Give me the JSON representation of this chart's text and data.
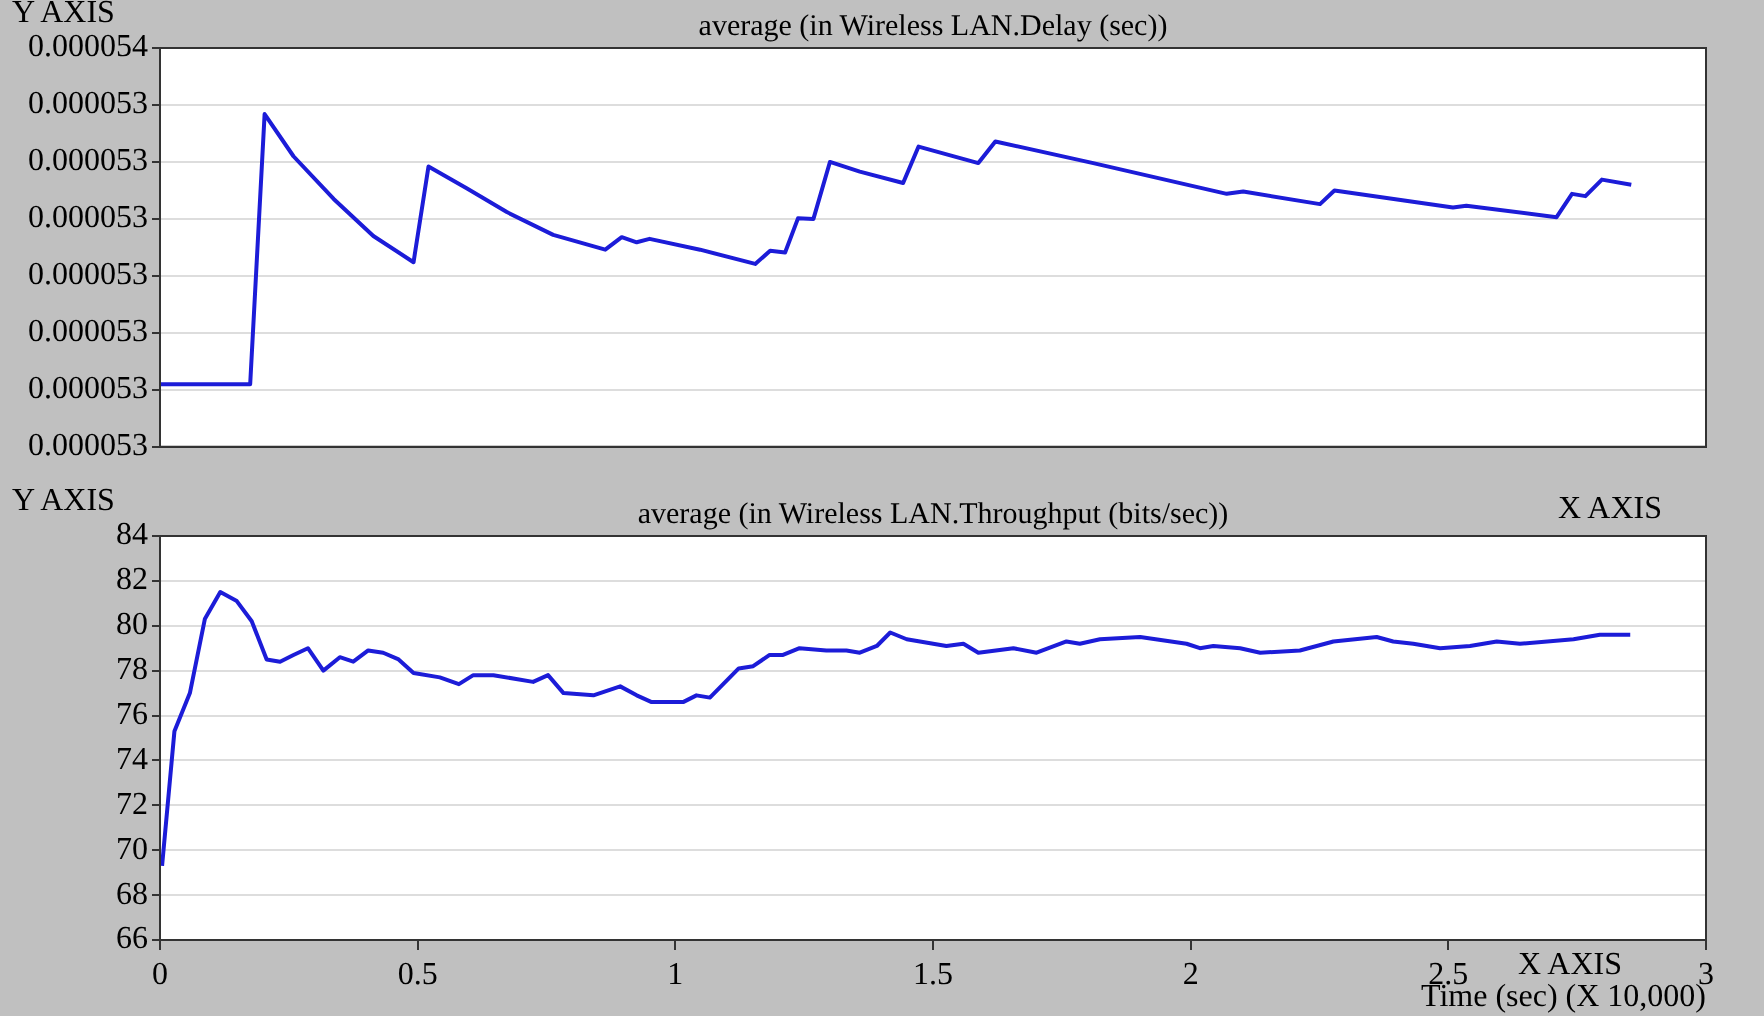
{
  "chart_data": [
    {
      "type": "line",
      "title": "average (in Wireless LAN.Delay (sec))",
      "ylabel": "Y AXIS",
      "xlim": [
        0,
        3
      ],
      "ylim": [
        5.285e-05,
        5.355e-05
      ],
      "tick_labels": "y",
      "grid": "y",
      "marker": "none",
      "yticks": [
        {
          "value": 5.285e-05,
          "label": "0.000053"
        },
        {
          "value": 5.295e-05,
          "label": "0.000053"
        },
        {
          "value": 5.305e-05,
          "label": "0.000053"
        },
        {
          "value": 5.315e-05,
          "label": "0.000053"
        },
        {
          "value": 5.325e-05,
          "label": "0.000053"
        },
        {
          "value": 5.335e-05,
          "label": "0.000053"
        },
        {
          "value": 5.345e-05,
          "label": "0.000053"
        },
        {
          "value": 5.355e-05,
          "label": "0.000054"
        }
      ],
      "x": [
        0,
        0.175,
        0.203,
        0.259,
        0.337,
        0.414,
        0.492,
        0.521,
        0.595,
        0.673,
        0.763,
        0.864,
        0.896,
        0.925,
        0.95,
        1.048,
        1.155,
        1.184,
        1.213,
        1.238,
        1.268,
        1.3,
        1.358,
        1.442,
        1.472,
        1.588,
        1.621,
        1.811,
        2.07,
        2.102,
        2.251,
        2.279,
        2.509,
        2.535,
        2.71,
        2.74,
        2.766,
        2.798,
        2.855
      ],
      "series": [
        {
          "color": "#1c1cd8",
          "values": [
            5.296e-05,
            5.296e-05,
            5.3434e-05,
            5.336e-05,
            5.3285e-05,
            5.322e-05,
            5.3174e-05,
            5.3342e-05,
            5.3304e-05,
            5.3262e-05,
            5.3222e-05,
            5.3196e-05,
            5.3218e-05,
            5.3209e-05,
            5.3215e-05,
            5.3196e-05,
            5.3171e-05,
            5.3194e-05,
            5.3191e-05,
            5.3251e-05,
            5.325e-05,
            5.335e-05,
            5.3333e-05,
            5.3313e-05,
            5.3377e-05,
            5.3348e-05,
            5.3386e-05,
            5.3348e-05,
            5.3294e-05,
            5.3298e-05,
            5.3276e-05,
            5.33e-05,
            5.327e-05,
            5.3273e-05,
            5.3253e-05,
            5.3294e-05,
            5.329e-05,
            5.3319e-05,
            5.331e-05
          ]
        }
      ]
    },
    {
      "type": "line",
      "title": "average (in Wireless LAN.Throughput (bits/sec))",
      "ylabel": "Y AXIS",
      "xlabel": "Time (sec) (X 10,000)",
      "annotations": [
        "X AXIS",
        "X AXIS"
      ],
      "xlim": [
        0,
        3
      ],
      "xticks": [
        0,
        0.5,
        1,
        1.5,
        2,
        2.5,
        3
      ],
      "ylim": [
        66,
        84
      ],
      "yticks": [
        66,
        68,
        70,
        72,
        74,
        76,
        78,
        80,
        82,
        84
      ],
      "grid": "y",
      "marker": "none",
      "x": [
        0.004,
        0.028,
        0.058,
        0.087,
        0.117,
        0.149,
        0.178,
        0.207,
        0.233,
        0.259,
        0.287,
        0.317,
        0.349,
        0.375,
        0.404,
        0.433,
        0.463,
        0.492,
        0.543,
        0.58,
        0.608,
        0.647,
        0.724,
        0.753,
        0.783,
        0.841,
        0.893,
        0.925,
        0.954,
        1.015,
        1.041,
        1.067,
        1.123,
        1.151,
        1.183,
        1.209,
        1.241,
        1.293,
        1.332,
        1.358,
        1.391,
        1.417,
        1.449,
        1.526,
        1.559,
        1.588,
        1.656,
        1.701,
        1.759,
        1.785,
        1.824,
        1.902,
        1.992,
        2.018,
        2.044,
        2.096,
        2.135,
        2.212,
        2.277,
        2.361,
        2.393,
        2.432,
        2.484,
        2.542,
        2.594,
        2.639,
        2.743,
        2.794,
        2.853
      ],
      "series": [
        {
          "color": "#1c1cd8",
          "values": [
            69.3,
            75.3,
            77.0,
            80.3,
            81.5,
            81.1,
            80.2,
            78.5,
            78.4,
            78.7,
            79.0,
            78.0,
            78.6,
            78.4,
            78.9,
            78.8,
            78.5,
            77.9,
            77.7,
            77.4,
            77.8,
            77.8,
            77.5,
            77.8,
            77.0,
            76.9,
            77.3,
            76.9,
            76.6,
            76.6,
            76.9,
            76.8,
            78.1,
            78.2,
            78.7,
            78.7,
            79.0,
            78.9,
            78.9,
            78.8,
            79.1,
            79.7,
            79.4,
            79.1,
            79.2,
            78.8,
            79.0,
            78.8,
            79.3,
            79.2,
            79.4,
            79.5,
            79.2,
            79.0,
            79.1,
            79.0,
            78.8,
            78.9,
            79.3,
            79.5,
            79.3,
            79.2,
            79.0,
            79.1,
            79.3,
            79.2,
            79.4,
            79.6,
            79.6
          ]
        }
      ]
    }
  ]
}
